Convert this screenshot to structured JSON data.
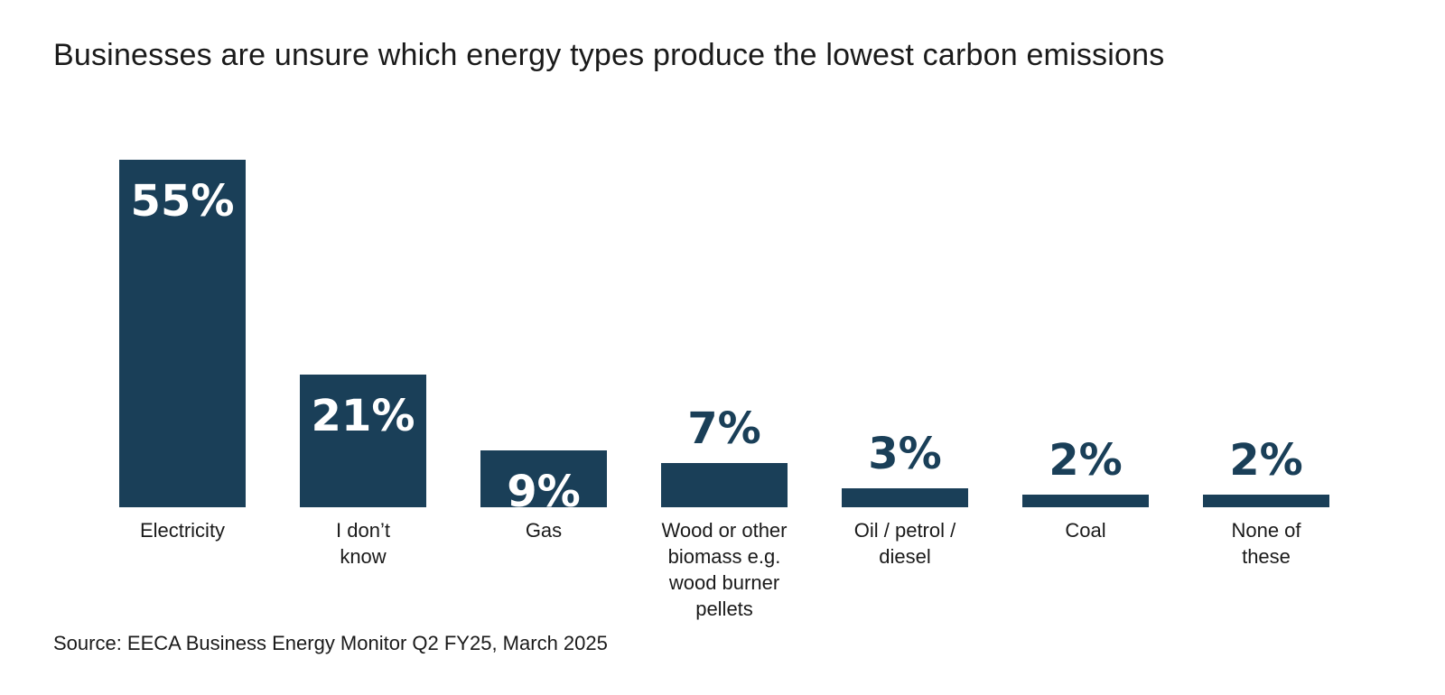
{
  "chart_data": {
    "type": "bar",
    "title": "Businesses are unsure which energy types produce the lowest carbon emissions",
    "categories": [
      [
        "Electricity"
      ],
      [
        "I don’t",
        "know"
      ],
      [
        "Gas"
      ],
      [
        "Wood or other",
        "biomass e.g.",
        "wood burner",
        "pellets"
      ],
      [
        "Oil /  petrol /",
        "diesel"
      ],
      [
        "Coal"
      ],
      [
        "None of",
        "these"
      ]
    ],
    "values": [
      55,
      21,
      9,
      7,
      3,
      2,
      2
    ],
    "value_labels": [
      "55%",
      "21%",
      "9%",
      "7%",
      "3%",
      "2%",
      "2%"
    ],
    "xlabel": "",
    "ylabel": "",
    "ylim": [
      0,
      55
    ],
    "grid": false,
    "legend": "none",
    "bar_color": "#1a3f58",
    "label_inside_color": "#ffffff",
    "label_outside_color": "#1a3f58"
  },
  "source": "Source: EECA Business Energy Monitor Q2 FY25, March 2025"
}
